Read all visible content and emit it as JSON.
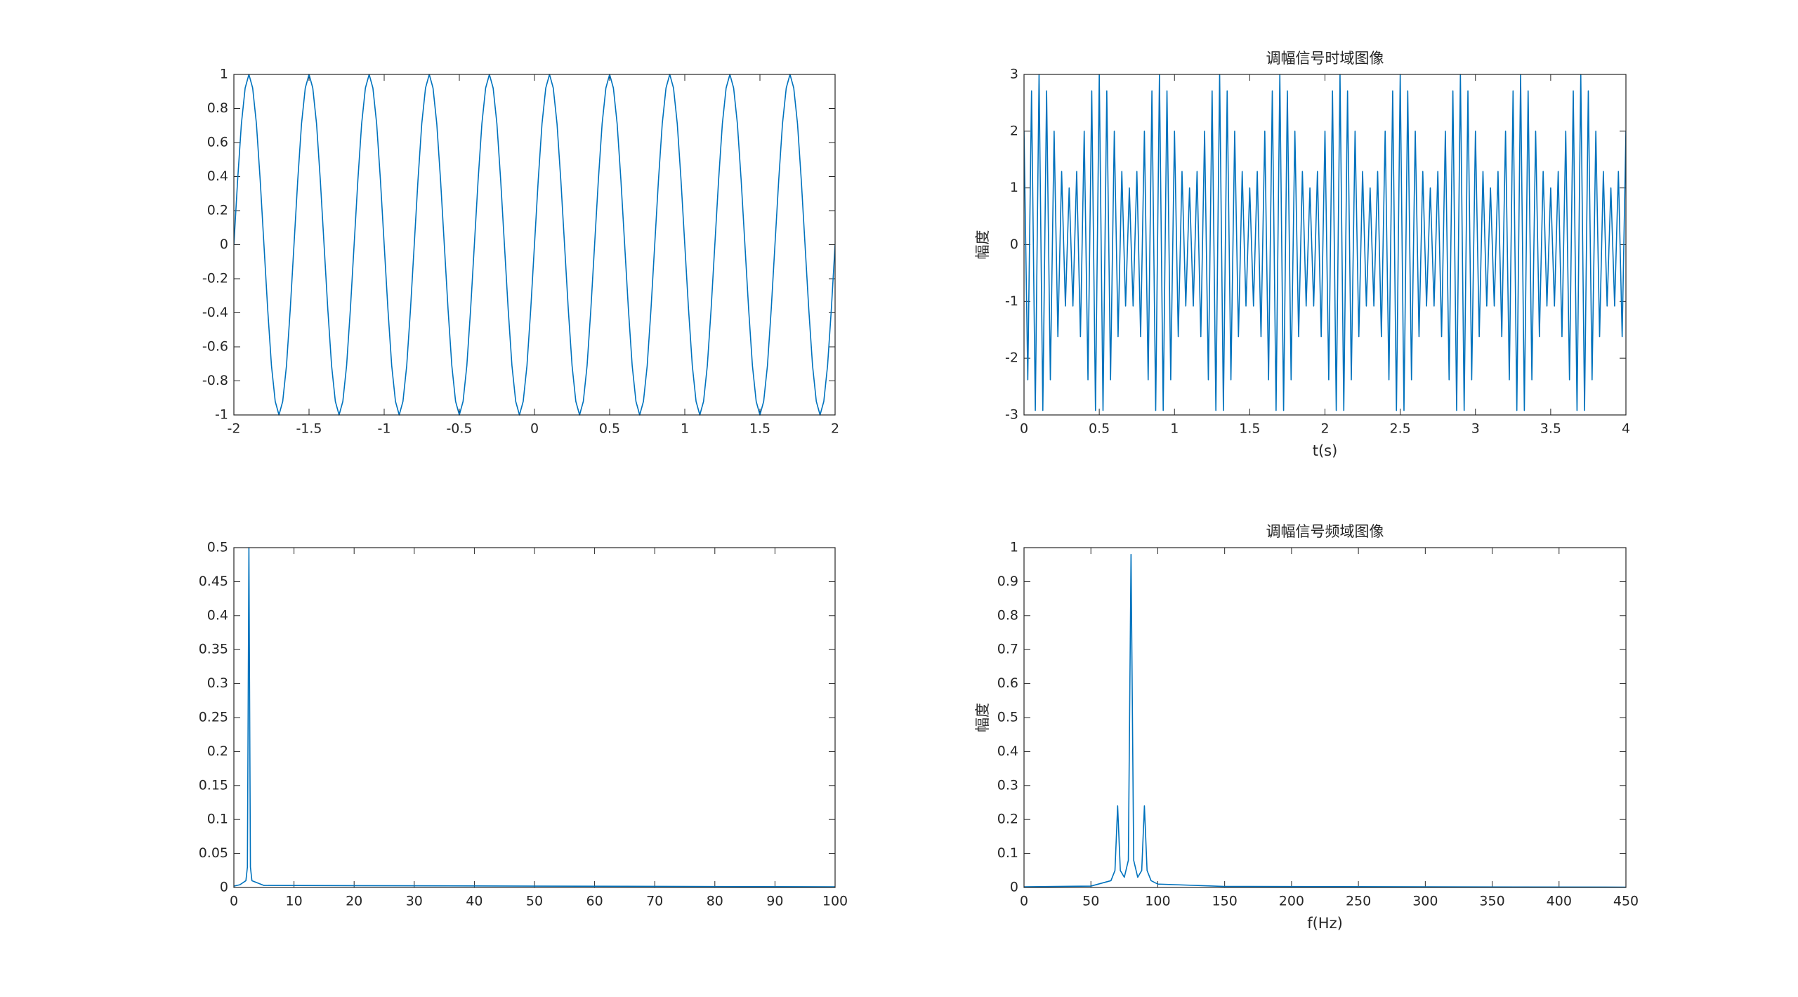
{
  "chart_data": [
    {
      "type": "line",
      "color": "#0072bd",
      "x": [
        -2,
        -1.975,
        -1.95,
        -1.925,
        -1.9,
        -1.875,
        -1.85,
        -1.825,
        -1.8,
        -1.775,
        -1.75,
        -1.725,
        -1.7,
        -1.675,
        -1.65,
        -1.625,
        -1.6,
        -1.575,
        -1.55,
        -1.525,
        -1.5,
        -1.475,
        -1.45,
        -1.425,
        -1.4,
        -1.375,
        -1.35,
        -1.325,
        -1.3,
        -1.275,
        -1.25,
        -1.225,
        -1.2,
        -1.175,
        -1.15,
        -1.125,
        -1.1,
        -1.075,
        -1.05,
        -1.025,
        -1,
        -0.975,
        -0.95,
        -0.925,
        -0.9,
        -0.875,
        -0.85,
        -0.825,
        -0.8,
        -0.775,
        -0.75,
        -0.725,
        -0.7,
        -0.675,
        -0.65,
        -0.625,
        -0.6,
        -0.575,
        -0.55,
        -0.525,
        -0.5,
        -0.475,
        -0.45,
        -0.425,
        -0.4,
        -0.375,
        -0.35,
        -0.325,
        -0.3,
        -0.275,
        -0.25,
        -0.225,
        -0.2,
        -0.175,
        -0.15,
        -0.125,
        -0.1,
        -0.075,
        -0.05,
        -0.025,
        0,
        0.025,
        0.05,
        0.075,
        0.1,
        0.125,
        0.15,
        0.175,
        0.2,
        0.225,
        0.25,
        0.275,
        0.3,
        0.325,
        0.35,
        0.375,
        0.4,
        0.425,
        0.45,
        0.475,
        0.5,
        0.525,
        0.55,
        0.575,
        0.6,
        0.625,
        0.65,
        0.675,
        0.7,
        0.725,
        0.75,
        0.775,
        0.8,
        0.825,
        0.85,
        0.875,
        0.9,
        0.925,
        0.95,
        0.975,
        1,
        1.025,
        1.05,
        1.075,
        1.1,
        1.125,
        1.15,
        1.175,
        1.2,
        1.225,
        1.25,
        1.275,
        1.3,
        1.325,
        1.35,
        1.375,
        1.4,
        1.425,
        1.45,
        1.475,
        1.5,
        1.525,
        1.55,
        1.575,
        1.6,
        1.625,
        1.65,
        1.675,
        1.7,
        1.725,
        1.75,
        1.775,
        1.8,
        1.825,
        1.85,
        1.875,
        1.9,
        1.925,
        1.95,
        1.975,
        2
      ],
      "values": [
        0,
        0.38,
        0.71,
        0.92,
        1,
        0.92,
        0.71,
        0.38,
        0,
        -0.38,
        -0.71,
        -0.92,
        -1,
        -0.92,
        -0.71,
        -0.38,
        0,
        0.38,
        0.71,
        0.92,
        1,
        0.92,
        0.71,
        0.38,
        0,
        -0.38,
        -0.71,
        -0.92,
        -1,
        -0.92,
        -0.71,
        -0.38,
        0,
        0.38,
        0.71,
        0.92,
        1,
        0.92,
        0.71,
        0.38,
        0,
        -0.38,
        -0.71,
        -0.92,
        -1,
        -0.92,
        -0.71,
        -0.38,
        0,
        0.38,
        0.71,
        0.92,
        1,
        0.92,
        0.71,
        0.38,
        0,
        -0.38,
        -0.71,
        -0.92,
        -1,
        -0.92,
        -0.71,
        -0.38,
        0,
        0.38,
        0.71,
        0.92,
        1,
        0.92,
        0.71,
        0.38,
        0,
        -0.38,
        -0.71,
        -0.92,
        -1,
        -0.92,
        -0.71,
        -0.38,
        0,
        0.38,
        0.71,
        0.92,
        1,
        0.92,
        0.71,
        0.38,
        0,
        -0.38,
        -0.71,
        -0.92,
        -1,
        -0.92,
        -0.71,
        -0.38,
        0,
        0.38,
        0.71,
        0.92,
        1,
        0.92,
        0.71,
        0.38,
        0,
        -0.38,
        -0.71,
        -0.92,
        -1,
        -0.92,
        -0.71,
        -0.38,
        0,
        0.38,
        0.71,
        0.92,
        1,
        0.92,
        0.71,
        0.38,
        0,
        -0.38,
        -0.71,
        -0.92,
        -1,
        -0.92,
        -0.71,
        -0.38,
        0,
        0.38,
        0.71,
        0.92,
        1,
        0.92,
        0.71,
        0.38,
        0,
        -0.38,
        -0.71,
        -0.92,
        -1,
        -0.92,
        -0.71,
        -0.38,
        0,
        0.38,
        0.71,
        0.92,
        1,
        0.92,
        0.71,
        0.38,
        0,
        -0.38,
        -0.71,
        -0.92,
        -1,
        -0.92,
        -0.71,
        -0.38,
        0
      ],
      "xlim": [
        -2,
        2
      ],
      "ylim": [
        -1,
        1
      ],
      "xticks": [
        -2,
        -1.5,
        -1,
        -0.5,
        0,
        0.5,
        1,
        1.5,
        2
      ],
      "yticks": [
        -1,
        -0.8,
        -0.6,
        -0.4,
        -0.2,
        0,
        0.2,
        0.4,
        0.6,
        0.8,
        1
      ]
    },
    {
      "type": "line",
      "color": "#0072bd",
      "title": "调幅信号时域图像",
      "xlabel": "t(s)",
      "ylabel": "幅度",
      "x": [
        0,
        0.025,
        0.05,
        0.075,
        0.1,
        0.125,
        0.15,
        0.175,
        0.2,
        0.225,
        0.25,
        0.275,
        0.3,
        0.325,
        0.35,
        0.375,
        0.4,
        0.425,
        0.45,
        0.475,
        0.5,
        0.525,
        0.55,
        0.575,
        0.6,
        0.625,
        0.65,
        0.675,
        0.7,
        0.725,
        0.75,
        0.775,
        0.8,
        0.825,
        0.85,
        0.875,
        0.9,
        0.925,
        0.95,
        0.975,
        1,
        1.025,
        1.05,
        1.075,
        1.1,
        1.125,
        1.15,
        1.175,
        1.2,
        1.225,
        1.25,
        1.275,
        1.3,
        1.325,
        1.35,
        1.375,
        1.4,
        1.425,
        1.45,
        1.475,
        1.5,
        1.525,
        1.55,
        1.575,
        1.6,
        1.625,
        1.65,
        1.675,
        1.7,
        1.725,
        1.75,
        1.775,
        1.8,
        1.825,
        1.85,
        1.875,
        1.9,
        1.925,
        1.95,
        1.975,
        2,
        2.025,
        2.05,
        2.075,
        2.1,
        2.125,
        2.15,
        2.175,
        2.2,
        2.225,
        2.25,
        2.275,
        2.3,
        2.325,
        2.35,
        2.375,
        2.4,
        2.425,
        2.45,
        2.475,
        2.5,
        2.525,
        2.55,
        2.575,
        2.6,
        2.625,
        2.65,
        2.675,
        2.7,
        2.725,
        2.75,
        2.775,
        2.8,
        2.825,
        2.85,
        2.875,
        2.9,
        2.925,
        2.95,
        2.975,
        3,
        3.025,
        3.05,
        3.075,
        3.1,
        3.125,
        3.15,
        3.175,
        3.2,
        3.225,
        3.25,
        3.275,
        3.3,
        3.325,
        3.35,
        3.375,
        3.4,
        3.425,
        3.45,
        3.475,
        3.5,
        3.525,
        3.55,
        3.575,
        3.6,
        3.625,
        3.65,
        3.675,
        3.7,
        3.725,
        3.75,
        3.775,
        3.8,
        3.825,
        3.85,
        3.875,
        3.9,
        3.925,
        3.95,
        3.975,
        4
      ],
      "values": [
        2,
        -2.38,
        2.71,
        -2.92,
        3,
        -2.92,
        2.71,
        -2.38,
        2,
        -1.62,
        1.29,
        -1.08,
        1,
        -1.08,
        1.29,
        -1.62,
        2,
        -2.38,
        2.71,
        -2.92,
        3,
        -2.92,
        2.71,
        -2.38,
        2,
        -1.62,
        1.29,
        -1.08,
        1,
        -1.08,
        1.29,
        -1.62,
        2,
        -2.38,
        2.71,
        -2.92,
        3,
        -2.92,
        2.71,
        -2.38,
        2,
        -1.62,
        1.29,
        -1.08,
        1,
        -1.08,
        1.29,
        -1.62,
        2,
        -2.38,
        2.71,
        -2.92,
        3,
        -2.92,
        2.71,
        -2.38,
        2,
        -1.62,
        1.29,
        -1.08,
        1,
        -1.08,
        1.29,
        -1.62,
        2,
        -2.38,
        2.71,
        -2.92,
        3,
        -2.92,
        2.71,
        -2.38,
        2,
        -1.62,
        1.29,
        -1.08,
        1,
        -1.08,
        1.29,
        -1.62,
        2,
        -2.38,
        2.71,
        -2.92,
        3,
        -2.92,
        2.71,
        -2.38,
        2,
        -1.62,
        1.29,
        -1.08,
        1,
        -1.08,
        1.29,
        -1.62,
        2,
        -2.38,
        2.71,
        -2.92,
        3,
        -2.92,
        2.71,
        -2.38,
        2,
        -1.62,
        1.29,
        -1.08,
        1,
        -1.08,
        1.29,
        -1.62,
        2,
        -2.38,
        2.71,
        -2.92,
        3,
        -2.92,
        2.71,
        -2.38,
        2,
        -1.62,
        1.29,
        -1.08,
        1,
        -1.08,
        1.29,
        -1.62,
        2,
        -2.38,
        2.71,
        -2.92,
        3,
        -2.92,
        2.71,
        -2.38,
        2,
        -1.62,
        1.29,
        -1.08,
        1,
        -1.08,
        1.29,
        -1.62,
        2,
        -2.38,
        2.71,
        -2.92,
        3,
        -2.92,
        2.71,
        -2.38,
        2,
        -1.62,
        1.29,
        -1.08,
        1,
        -1.08,
        1.29,
        -1.62,
        2
      ],
      "xlim": [
        0,
        4
      ],
      "ylim": [
        -3,
        3
      ],
      "xticks": [
        0,
        0.5,
        1,
        1.5,
        2,
        2.5,
        3,
        3.5,
        4
      ],
      "yticks": [
        -3,
        -2,
        -1,
        0,
        1,
        2,
        3
      ]
    },
    {
      "type": "line",
      "color": "#0072bd",
      "x": [
        0,
        1,
        2,
        2.25,
        2.5,
        2.75,
        3,
        5,
        100
      ],
      "values": [
        0.002,
        0.004,
        0.01,
        0.03,
        0.5,
        0.03,
        0.01,
        0.003,
        0.001
      ],
      "xlim": [
        0,
        100
      ],
      "ylim": [
        0,
        0.5
      ],
      "xticks": [
        0,
        10,
        20,
        30,
        40,
        50,
        60,
        70,
        80,
        90,
        100
      ],
      "yticks": [
        0,
        0.05,
        0.1,
        0.15,
        0.2,
        0.25,
        0.3,
        0.35,
        0.4,
        0.45,
        0.5
      ]
    },
    {
      "type": "line",
      "color": "#0072bd",
      "title": "调幅信号频域图像",
      "xlabel": "f(Hz)",
      "ylabel": "幅度",
      "x": [
        0,
        50,
        65,
        68,
        70,
        72,
        75,
        78,
        80,
        82,
        85,
        88,
        90,
        92,
        95,
        100,
        150,
        450
      ],
      "values": [
        0.002,
        0.004,
        0.02,
        0.05,
        0.24,
        0.05,
        0.03,
        0.08,
        0.98,
        0.08,
        0.03,
        0.05,
        0.24,
        0.05,
        0.02,
        0.01,
        0.003,
        0.001
      ],
      "xlim": [
        0,
        450
      ],
      "ylim": [
        0,
        1
      ],
      "xticks": [
        0,
        50,
        100,
        150,
        200,
        250,
        300,
        350,
        400,
        450
      ],
      "yticks": [
        0,
        0.1,
        0.2,
        0.3,
        0.4,
        0.5,
        0.6,
        0.7,
        0.8,
        0.9,
        1
      ]
    }
  ]
}
